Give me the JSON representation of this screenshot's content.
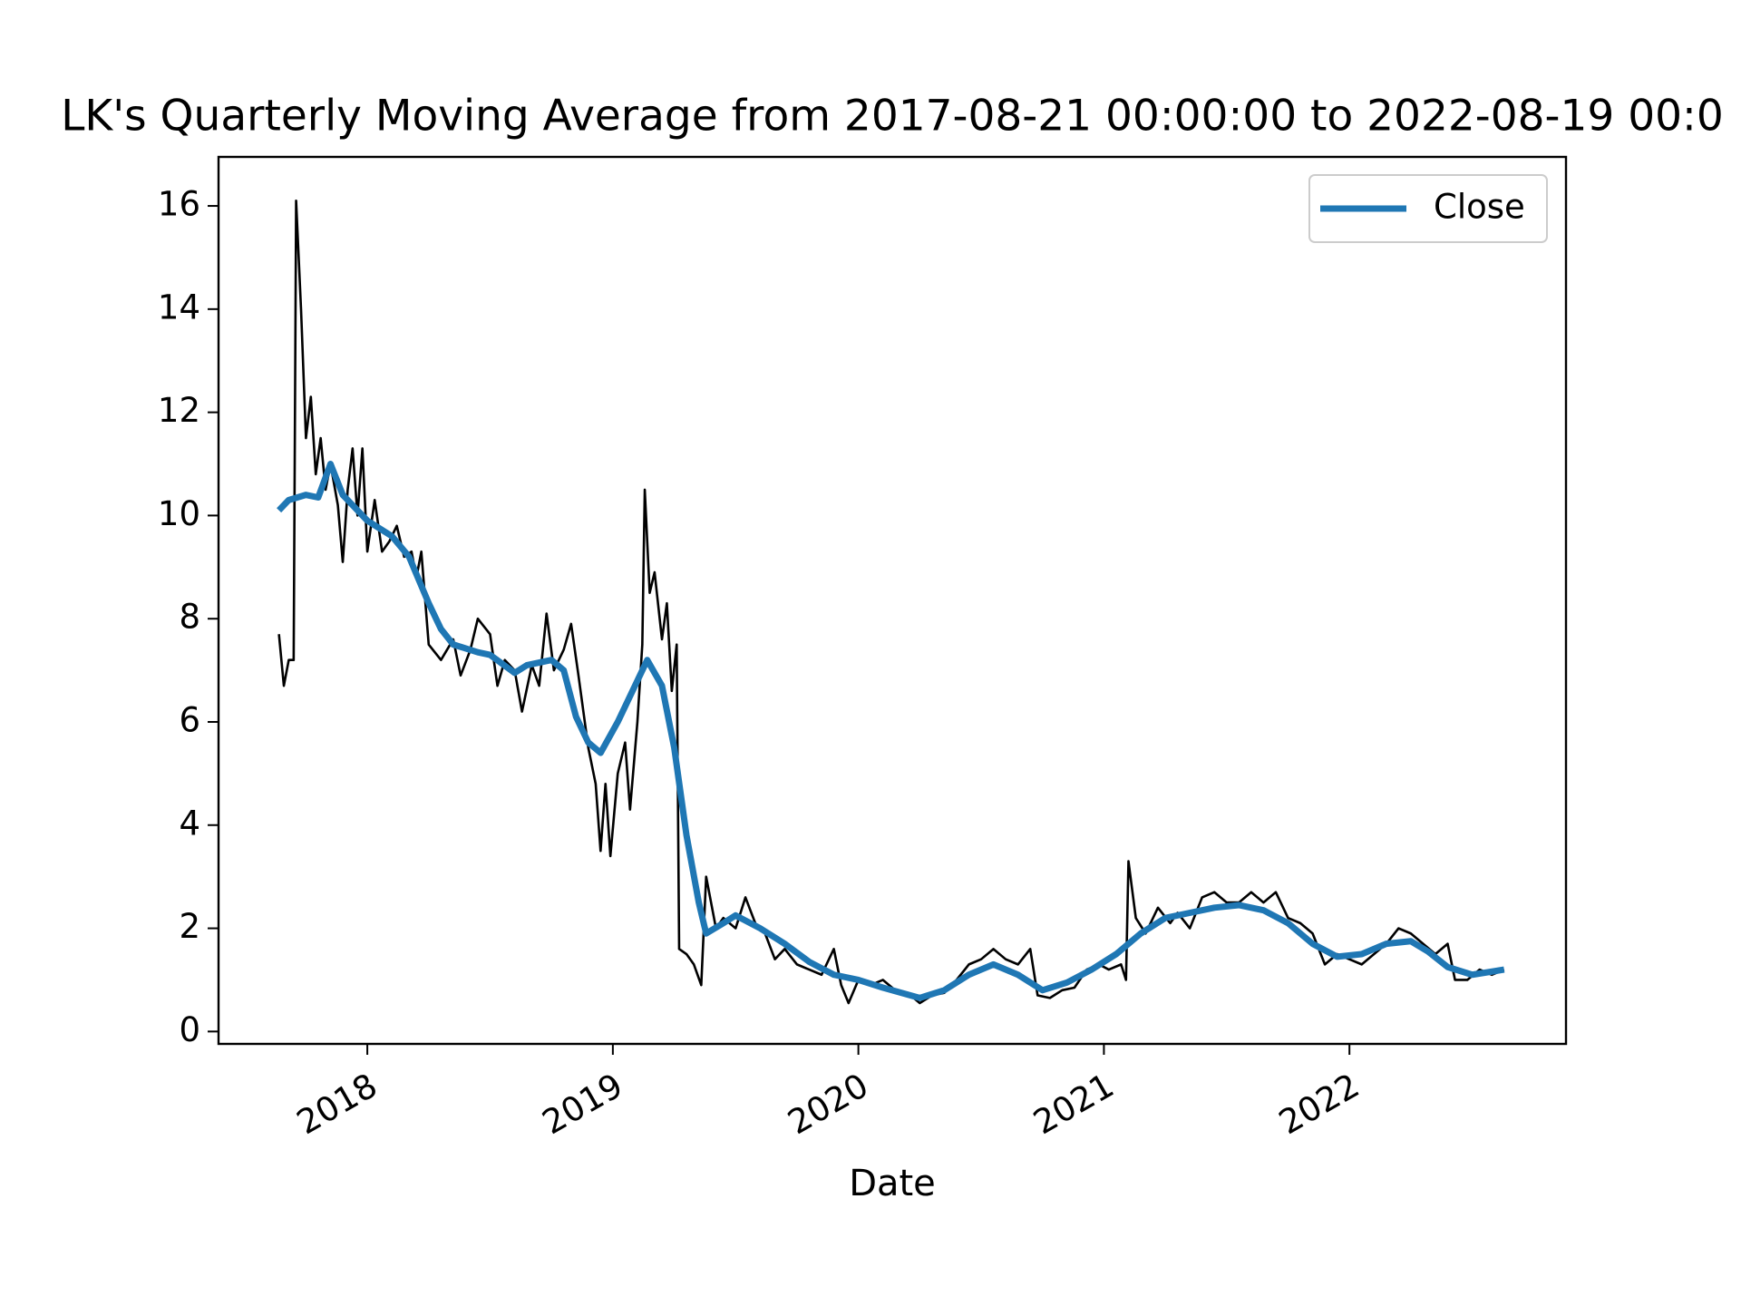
{
  "chart_data": {
    "type": "line",
    "title": "LK's Quarterly Moving Average from 2017-08-21 00:00:00 to 2022-08-19 00:0",
    "xlabel": "Date",
    "xlim": [
      2017.394,
      2022.882
    ],
    "xticks": [
      2018,
      2019,
      2020,
      2021,
      2022
    ],
    "ylim": [
      -0.24,
      16.95
    ],
    "yticks": [
      0,
      2,
      4,
      6,
      8,
      10,
      12,
      14,
      16
    ],
    "legend": "upper right",
    "series": [
      {
        "color": "#000000",
        "width": 2.6,
        "x": [
          2017.64,
          2017.66,
          2017.68,
          2017.7,
          2017.71,
          2017.73,
          2017.75,
          2017.77,
          2017.79,
          2017.81,
          2017.83,
          2017.85,
          2017.88,
          2017.9,
          2017.92,
          2017.94,
          2017.96,
          2017.98,
          2018.0,
          2018.03,
          2018.06,
          2018.09,
          2018.12,
          2018.15,
          2018.18,
          2018.2,
          2018.22,
          2018.25,
          2018.3,
          2018.35,
          2018.38,
          2018.42,
          2018.45,
          2018.5,
          2018.53,
          2018.56,
          2018.6,
          2018.63,
          2018.67,
          2018.7,
          2018.73,
          2018.76,
          2018.8,
          2018.83,
          2018.86,
          2018.9,
          2018.93,
          2018.95,
          2018.97,
          2018.99,
          2019.02,
          2019.05,
          2019.07,
          2019.1,
          2019.12,
          2019.13,
          2019.15,
          2019.17,
          2019.2,
          2019.22,
          2019.24,
          2019.26,
          2019.27,
          2019.3,
          2019.33,
          2019.36,
          2019.38,
          2019.42,
          2019.45,
          2019.5,
          2019.54,
          2019.58,
          2019.62,
          2019.66,
          2019.7,
          2019.75,
          2019.8,
          2019.85,
          2019.9,
          2019.93,
          2019.96,
          2020.0,
          2020.05,
          2020.1,
          2020.15,
          2020.2,
          2020.25,
          2020.3,
          2020.35,
          2020.4,
          2020.45,
          2020.5,
          2020.55,
          2020.6,
          2020.65,
          2020.7,
          2020.73,
          2020.78,
          2020.83,
          2020.88,
          2020.93,
          2020.98,
          2021.02,
          2021.07,
          2021.09,
          2021.1,
          2021.13,
          2021.17,
          2021.22,
          2021.27,
          2021.3,
          2021.35,
          2021.4,
          2021.45,
          2021.5,
          2021.55,
          2021.6,
          2021.65,
          2021.7,
          2021.75,
          2021.8,
          2021.85,
          2021.9,
          2021.95,
          2022.0,
          2022.05,
          2022.1,
          2022.15,
          2022.2,
          2022.25,
          2022.3,
          2022.35,
          2022.4,
          2022.43,
          2022.48,
          2022.53,
          2022.58,
          2022.63
        ],
        "values": [
          7.7,
          6.7,
          7.2,
          7.2,
          16.1,
          14.0,
          11.5,
          12.3,
          10.8,
          11.5,
          10.5,
          11.0,
          10.2,
          9.1,
          10.5,
          11.3,
          10.0,
          11.3,
          9.3,
          10.3,
          9.3,
          9.5,
          9.8,
          9.2,
          9.3,
          8.8,
          9.3,
          7.5,
          7.2,
          7.6,
          6.9,
          7.4,
          8.0,
          7.7,
          6.7,
          7.2,
          7.0,
          6.2,
          7.1,
          6.7,
          8.1,
          7.0,
          7.4,
          7.9,
          6.9,
          5.5,
          4.8,
          3.5,
          4.8,
          3.4,
          5.0,
          5.6,
          4.3,
          6.0,
          7.5,
          10.5,
          8.5,
          8.9,
          7.6,
          8.3,
          6.6,
          7.5,
          1.6,
          1.5,
          1.3,
          0.9,
          3.0,
          2.0,
          2.2,
          2.0,
          2.6,
          2.1,
          1.9,
          1.4,
          1.6,
          1.3,
          1.2,
          1.1,
          1.6,
          0.9,
          0.55,
          1.0,
          0.9,
          1.0,
          0.8,
          0.75,
          0.55,
          0.7,
          0.75,
          1.0,
          1.3,
          1.4,
          1.6,
          1.4,
          1.3,
          1.6,
          0.7,
          0.65,
          0.8,
          0.85,
          1.2,
          1.3,
          1.2,
          1.3,
          1.0,
          3.3,
          2.2,
          1.9,
          2.4,
          2.1,
          2.3,
          2.0,
          2.6,
          2.7,
          2.5,
          2.5,
          2.7,
          2.5,
          2.7,
          2.2,
          2.1,
          1.9,
          1.3,
          1.5,
          1.4,
          1.3,
          1.5,
          1.7,
          2.0,
          1.9,
          1.7,
          1.5,
          1.7,
          1.0,
          1.0,
          1.2,
          1.1,
          1.2
        ]
      },
      {
        "name": "Close",
        "color": "#1f77b4",
        "width": 7,
        "x": [
          2017.64,
          2017.68,
          2017.75,
          2017.8,
          2017.85,
          2017.9,
          2018.0,
          2018.1,
          2018.17,
          2018.25,
          2018.3,
          2018.35,
          2018.45,
          2018.5,
          2018.6,
          2018.65,
          2018.75,
          2018.8,
          2018.85,
          2018.9,
          2018.95,
          2019.02,
          2019.1,
          2019.14,
          2019.2,
          2019.25,
          2019.3,
          2019.35,
          2019.38,
          2019.45,
          2019.5,
          2019.6,
          2019.7,
          2019.8,
          2019.9,
          2020.0,
          2020.1,
          2020.25,
          2020.35,
          2020.45,
          2020.55,
          2020.65,
          2020.75,
          2020.85,
          2020.95,
          2021.05,
          2021.15,
          2021.25,
          2021.35,
          2021.45,
          2021.55,
          2021.65,
          2021.75,
          2021.85,
          2021.95,
          2022.05,
          2022.15,
          2022.25,
          2022.32,
          2022.4,
          2022.5,
          2022.63
        ],
        "values": [
          10.1,
          10.3,
          10.4,
          10.35,
          11.0,
          10.4,
          9.9,
          9.6,
          9.2,
          8.3,
          7.8,
          7.5,
          7.35,
          7.3,
          6.95,
          7.1,
          7.2,
          7.0,
          6.1,
          5.6,
          5.4,
          6.0,
          6.8,
          7.2,
          6.7,
          5.5,
          3.8,
          2.5,
          1.9,
          2.1,
          2.25,
          2.0,
          1.7,
          1.35,
          1.1,
          1.0,
          0.85,
          0.65,
          0.8,
          1.1,
          1.3,
          1.1,
          0.8,
          0.95,
          1.2,
          1.5,
          1.9,
          2.2,
          2.3,
          2.4,
          2.45,
          2.35,
          2.1,
          1.7,
          1.45,
          1.5,
          1.7,
          1.75,
          1.55,
          1.25,
          1.1,
          1.2
        ]
      }
    ]
  }
}
